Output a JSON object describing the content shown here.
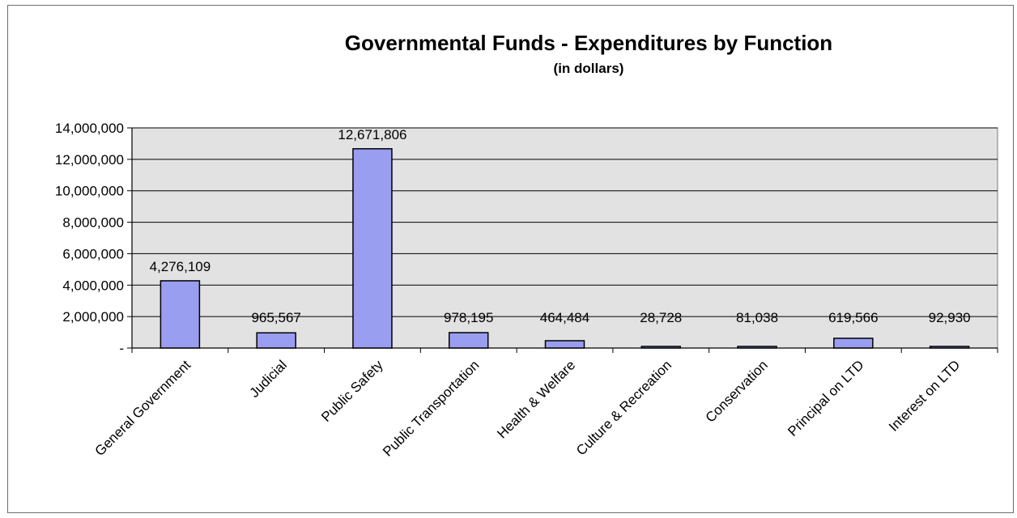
{
  "chart_data": {
    "type": "bar",
    "title": "Governmental Funds - Expenditures by Function",
    "subtitle": "(in dollars)",
    "categories": [
      "General Government",
      "Judicial",
      "Public Safety",
      "Public Transportation",
      "Health & Welfare",
      "Culture & Recreation",
      "Conservation",
      "Principal on LTD",
      "Interest on LTD"
    ],
    "values": [
      4276109,
      965567,
      12671806,
      978195,
      464484,
      28728,
      81038,
      619566,
      92930
    ],
    "data_labels": [
      "4,276,109",
      "965,567",
      "12,671,806",
      "978,195",
      "464,484",
      "28,728",
      "81,038",
      "619,566",
      "92,930"
    ],
    "y_ticks": [
      "-",
      "2,000,000",
      "4,000,000",
      "6,000,000",
      "8,000,000",
      "10,000,000",
      "12,000,000",
      "14,000,000"
    ],
    "y_tick_values": [
      0,
      2000000,
      4000000,
      6000000,
      8000000,
      10000000,
      12000000,
      14000000
    ],
    "ylim": [
      0,
      14000000
    ],
    "xlabel": "",
    "ylabel": "",
    "grid": true,
    "legend": "none",
    "colors": {
      "bar": "#9a9ef0",
      "bar_border": "#000000",
      "plot_background": "#e2e2e2",
      "gridline": "#000000"
    }
  }
}
